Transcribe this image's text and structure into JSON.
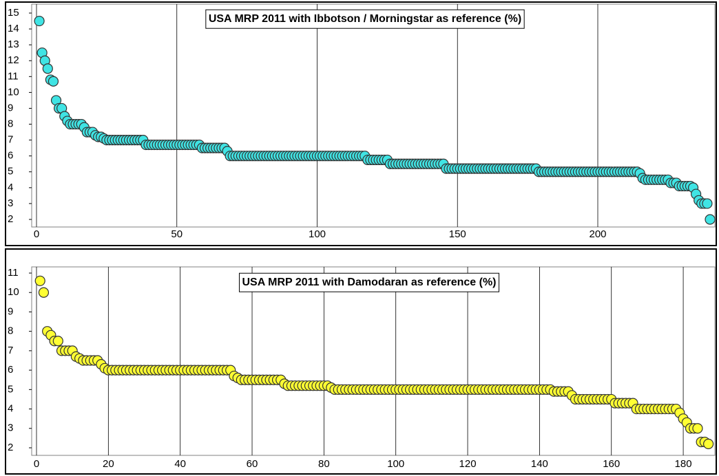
{
  "chart_data": [
    {
      "type": "scatter",
      "title": "USA MRP 2011 with Ibbotson / Morningstar as reference (%)",
      "color": "#40e4e4",
      "grid": true,
      "xlim": [
        0,
        240
      ],
      "ylim": [
        2,
        15
      ],
      "xticks": [
        0,
        50,
        100,
        150,
        200
      ],
      "yticks": [
        2,
        3,
        4,
        5,
        6,
        7,
        8,
        9,
        10,
        11,
        12,
        13,
        14,
        15
      ],
      "x": [
        1,
        2,
        3,
        4,
        5,
        6,
        7,
        8,
        9,
        10,
        11,
        12,
        13,
        14,
        15,
        16,
        17,
        18,
        19,
        20,
        21,
        22,
        23,
        24,
        25,
        26,
        27,
        28,
        29,
        30,
        31,
        32,
        33,
        34,
        35,
        36,
        37,
        38,
        39,
        40,
        41,
        42,
        43,
        44,
        45,
        46,
        47,
        48,
        49,
        50,
        51,
        52,
        53,
        54,
        55,
        56,
        57,
        58,
        59,
        60,
        61,
        62,
        63,
        64,
        65,
        66,
        67,
        68,
        69,
        70,
        71,
        72,
        73,
        74,
        75,
        76,
        77,
        78,
        79,
        80,
        81,
        82,
        83,
        84,
        85,
        86,
        87,
        88,
        89,
        90,
        91,
        92,
        93,
        94,
        95,
        96,
        97,
        98,
        99,
        100,
        101,
        102,
        103,
        104,
        105,
        106,
        107,
        108,
        109,
        110,
        111,
        112,
        113,
        114,
        115,
        116,
        117,
        118,
        119,
        120,
        121,
        122,
        123,
        124,
        125,
        126,
        127,
        128,
        129,
        130,
        131,
        132,
        133,
        134,
        135,
        136,
        137,
        138,
        139,
        140,
        141,
        142,
        143,
        144,
        145,
        146,
        147,
        148,
        149,
        150,
        151,
        152,
        153,
        154,
        155,
        156,
        157,
        158,
        159,
        160,
        161,
        162,
        163,
        164,
        165,
        166,
        167,
        168,
        169,
        170,
        171,
        172,
        173,
        174,
        175,
        176,
        177,
        178,
        179,
        180,
        181,
        182,
        183,
        184,
        185,
        186,
        187,
        188,
        189,
        190,
        191,
        192,
        193,
        194,
        195,
        196,
        197,
        198,
        199,
        200,
        201,
        202,
        203,
        204,
        205,
        206,
        207,
        208,
        209,
        210,
        211,
        212,
        213,
        214,
        215,
        216,
        217,
        218,
        219,
        220,
        221,
        222,
        223,
        224,
        225,
        226,
        227,
        228,
        229,
        230,
        231,
        232,
        233,
        234,
        235,
        236,
        237,
        238,
        239,
        240
      ],
      "values": [
        14.5,
        12.5,
        12,
        11.5,
        10.8,
        10.7,
        9.5,
        9,
        9,
        8.5,
        8.2,
        8,
        8,
        8,
        8,
        8,
        7.8,
        7.5,
        7.5,
        7.5,
        7.3,
        7.2,
        7.2,
        7.1,
        7,
        7,
        7,
        7,
        7,
        7,
        7,
        7,
        7,
        7,
        7,
        7,
        7,
        7,
        6.7,
        6.7,
        6.7,
        6.7,
        6.7,
        6.7,
        6.7,
        6.7,
        6.7,
        6.7,
        6.7,
        6.7,
        6.7,
        6.7,
        6.7,
        6.7,
        6.7,
        6.7,
        6.7,
        6.7,
        6.5,
        6.5,
        6.5,
        6.5,
        6.5,
        6.5,
        6.5,
        6.5,
        6.5,
        6.3,
        6,
        6,
        6,
        6,
        6,
        6,
        6,
        6,
        6,
        6,
        6,
        6,
        6,
        6,
        6,
        6,
        6,
        6,
        6,
        6,
        6,
        6,
        6,
        6,
        6,
        6,
        6,
        6,
        6,
        6,
        6,
        6,
        6,
        6,
        6,
        6,
        6,
        6,
        6,
        6,
        6,
        6,
        6,
        6,
        6,
        6,
        6,
        6,
        6,
        5.75,
        5.75,
        5.75,
        5.75,
        5.75,
        5.75,
        5.75,
        5.75,
        5.5,
        5.5,
        5.5,
        5.5,
        5.5,
        5.5,
        5.5,
        5.5,
        5.5,
        5.5,
        5.5,
        5.5,
        5.5,
        5.5,
        5.5,
        5.5,
        5.5,
        5.5,
        5.5,
        5.5,
        5.2,
        5.2,
        5.2,
        5.2,
        5.2,
        5.2,
        5.2,
        5.2,
        5.2,
        5.2,
        5.2,
        5.2,
        5.2,
        5.2,
        5.2,
        5.2,
        5.2,
        5.2,
        5.2,
        5.2,
        5.2,
        5.2,
        5.2,
        5.2,
        5.2,
        5.2,
        5.2,
        5.2,
        5.2,
        5.2,
        5.2,
        5.2,
        5.2,
        5,
        5,
        5,
        5,
        5,
        5,
        5,
        5,
        5,
        5,
        5,
        5,
        5,
        5,
        5,
        5,
        5,
        5,
        5,
        5,
        5,
        5,
        5,
        5,
        5,
        5,
        5,
        5,
        5,
        5,
        5,
        5,
        5,
        5,
        5,
        5,
        4.9,
        4.6,
        4.5,
        4.5,
        4.5,
        4.5,
        4.5,
        4.5,
        4.5,
        4.5,
        4.5,
        4.3,
        4.3,
        4.3,
        4.1,
        4.1,
        4.1,
        4.1,
        4.1,
        4,
        3.6,
        3.2,
        3,
        3,
        3,
        2
      ]
    },
    {
      "type": "scatter",
      "title": "USA MRP 2011 with Damodaran as reference (%)",
      "color": "#ffff33",
      "grid": true,
      "xlim": [
        0,
        187
      ],
      "ylim": [
        2,
        11
      ],
      "xticks": [
        0,
        20,
        40,
        60,
        80,
        100,
        120,
        140,
        160,
        180
      ],
      "yticks": [
        2,
        3,
        4,
        5,
        6,
        7,
        8,
        9,
        10,
        11
      ],
      "x": [
        1,
        2,
        3,
        4,
        5,
        6,
        7,
        8,
        9,
        10,
        11,
        12,
        13,
        14,
        15,
        16,
        17,
        18,
        19,
        20,
        21,
        22,
        23,
        24,
        25,
        26,
        27,
        28,
        29,
        30,
        31,
        32,
        33,
        34,
        35,
        36,
        37,
        38,
        39,
        40,
        41,
        42,
        43,
        44,
        45,
        46,
        47,
        48,
        49,
        50,
        51,
        52,
        53,
        54,
        55,
        56,
        57,
        58,
        59,
        60,
        61,
        62,
        63,
        64,
        65,
        66,
        67,
        68,
        69,
        70,
        71,
        72,
        73,
        74,
        75,
        76,
        77,
        78,
        79,
        80,
        81,
        82,
        83,
        84,
        85,
        86,
        87,
        88,
        89,
        90,
        91,
        92,
        93,
        94,
        95,
        96,
        97,
        98,
        99,
        100,
        101,
        102,
        103,
        104,
        105,
        106,
        107,
        108,
        109,
        110,
        111,
        112,
        113,
        114,
        115,
        116,
        117,
        118,
        119,
        120,
        121,
        122,
        123,
        124,
        125,
        126,
        127,
        128,
        129,
        130,
        131,
        132,
        133,
        134,
        135,
        136,
        137,
        138,
        139,
        140,
        141,
        142,
        143,
        144,
        145,
        146,
        147,
        148,
        149,
        150,
        151,
        152,
        153,
        154,
        155,
        156,
        157,
        158,
        159,
        160,
        161,
        162,
        163,
        164,
        165,
        166,
        167,
        168,
        169,
        170,
        171,
        172,
        173,
        174,
        175,
        176,
        177,
        178,
        179,
        180,
        181,
        182,
        183,
        184,
        185,
        186,
        187
      ],
      "values": [
        10.6,
        10,
        8,
        7.8,
        7.5,
        7.5,
        7,
        7,
        7,
        7,
        6.7,
        6.6,
        6.5,
        6.5,
        6.5,
        6.5,
        6.5,
        6.3,
        6.1,
        6,
        6,
        6,
        6,
        6,
        6,
        6,
        6,
        6,
        6,
        6,
        6,
        6,
        6,
        6,
        6,
        6,
        6,
        6,
        6,
        6,
        6,
        6,
        6,
        6,
        6,
        6,
        6,
        6,
        6,
        6,
        6,
        6,
        6,
        6,
        5.7,
        5.6,
        5.5,
        5.5,
        5.5,
        5.5,
        5.5,
        5.5,
        5.5,
        5.5,
        5.5,
        5.5,
        5.5,
        5.5,
        5.3,
        5.2,
        5.2,
        5.2,
        5.2,
        5.2,
        5.2,
        5.2,
        5.2,
        5.2,
        5.2,
        5.2,
        5.2,
        5.1,
        5,
        5,
        5,
        5,
        5,
        5,
        5,
        5,
        5,
        5,
        5,
        5,
        5,
        5,
        5,
        5,
        5,
        5,
        5,
        5,
        5,
        5,
        5,
        5,
        5,
        5,
        5,
        5,
        5,
        5,
        5,
        5,
        5,
        5,
        5,
        5,
        5,
        5,
        5,
        5,
        5,
        5,
        5,
        5,
        5,
        5,
        5,
        5,
        5,
        5,
        5,
        5,
        5,
        5,
        5,
        5,
        5,
        5,
        5,
        5,
        5,
        4.9,
        4.9,
        4.9,
        4.9,
        4.9,
        4.7,
        4.5,
        4.5,
        4.5,
        4.5,
        4.5,
        4.5,
        4.5,
        4.5,
        4.5,
        4.5,
        4.5,
        4.3,
        4.3,
        4.3,
        4.3,
        4.3,
        4.3,
        4,
        4,
        4,
        4,
        4,
        4,
        4,
        4,
        4,
        4,
        4,
        4,
        3.8,
        3.5,
        3.3,
        3,
        3,
        3,
        2.3,
        2.3,
        2.2
      ]
    }
  ]
}
